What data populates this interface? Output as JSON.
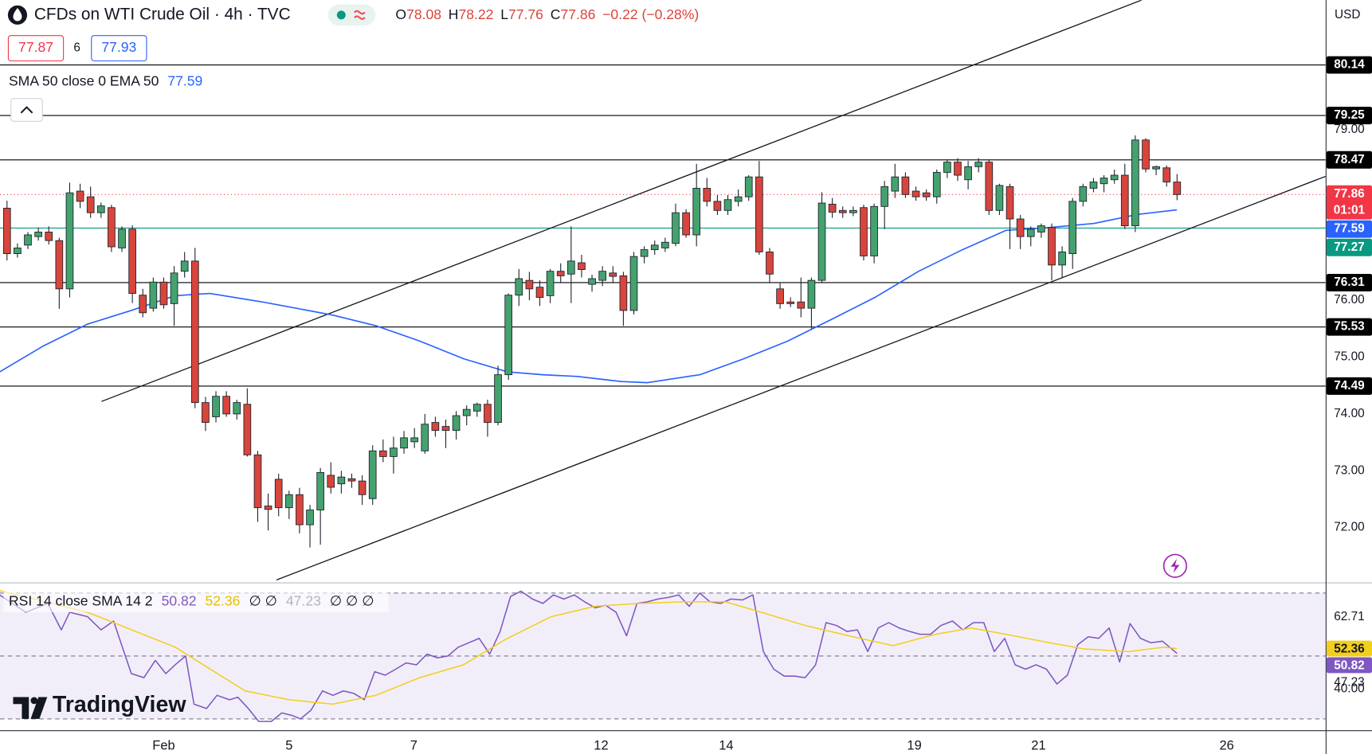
{
  "chart_data": {
    "type": "candlestick",
    "title": "CFDs on WTI Crude Oil · 4h · TVC",
    "legend": [
      [
        "O",
        78.08
      ],
      [
        "H",
        78.22
      ],
      [
        "L",
        77.76
      ],
      [
        "C",
        77.86
      ]
    ],
    "change": "−0.22 (−0.28%)",
    "bid": 77.87,
    "spread": 6,
    "ask": 77.93,
    "currency": "USD",
    "up_color": "#44a26e",
    "down_color": "#d8453c",
    "xlim": [
      -0.67,
      126.22
    ],
    "xticks": [
      {
        "value": 15.0,
        "label": "Feb"
      },
      {
        "value": 27.0,
        "label": "5"
      },
      {
        "value": 38.94,
        "label": "7"
      },
      {
        "value": 56.87,
        "label": "12"
      },
      {
        "value": 68.84,
        "label": "14"
      },
      {
        "value": 86.85,
        "label": "19"
      },
      {
        "value": 98.74,
        "label": "21"
      },
      {
        "value": 116.75,
        "label": "26"
      }
    ],
    "ylim": [
      71.05,
      81.28
    ],
    "yticks": [
      {
        "value": 72,
        "label": "72.00"
      },
      {
        "value": 73,
        "label": "73.00"
      },
      {
        "value": 74,
        "label": "74.00"
      },
      {
        "value": 75,
        "label": "75.00"
      },
      {
        "value": 76,
        "label": "76.00"
      },
      {
        "value": 79,
        "label": "79.00"
      }
    ],
    "ohlc": [
      [
        77.62,
        77.75,
        76.7,
        76.82
      ],
      [
        76.82,
        77.0,
        76.75,
        76.92
      ],
      [
        76.97,
        77.2,
        76.9,
        77.15
      ],
      [
        77.12,
        77.28,
        77.05,
        77.2
      ],
      [
        77.2,
        77.3,
        76.98,
        77.05
      ],
      [
        77.05,
        77.1,
        75.85,
        76.2
      ],
      [
        76.2,
        78.07,
        76.05,
        77.89
      ],
      [
        77.92,
        78.05,
        77.62,
        77.74
      ],
      [
        77.82,
        78.0,
        77.45,
        77.54
      ],
      [
        77.54,
        77.72,
        77.45,
        77.66
      ],
      [
        77.63,
        77.68,
        76.85,
        76.94
      ],
      [
        76.92,
        77.3,
        76.85,
        77.25
      ],
      [
        77.25,
        77.32,
        75.95,
        76.12
      ],
      [
        76.09,
        76.2,
        75.7,
        75.78
      ],
      [
        75.86,
        76.4,
        75.8,
        76.32
      ],
      [
        76.32,
        76.4,
        75.85,
        75.92
      ],
      [
        75.94,
        76.6,
        75.55,
        76.48
      ],
      [
        76.51,
        76.85,
        76.4,
        76.69
      ],
      [
        76.69,
        76.92,
        74.1,
        74.2
      ],
      [
        74.2,
        74.3,
        73.7,
        73.85
      ],
      [
        73.95,
        74.4,
        73.85,
        74.31
      ],
      [
        74.31,
        74.4,
        73.95,
        74.0
      ],
      [
        74.0,
        74.25,
        73.9,
        74.2
      ],
      [
        74.17,
        74.45,
        73.25,
        73.28
      ],
      [
        73.28,
        73.35,
        72.1,
        72.35
      ],
      [
        72.38,
        72.6,
        71.95,
        72.32
      ],
      [
        72.85,
        72.95,
        72.2,
        72.35
      ],
      [
        72.35,
        72.65,
        72.15,
        72.58
      ],
      [
        72.58,
        72.7,
        71.9,
        72.05
      ],
      [
        72.05,
        72.4,
        71.65,
        72.31
      ],
      [
        72.31,
        73.05,
        71.7,
        72.97
      ],
      [
        72.92,
        73.15,
        72.6,
        72.71
      ],
      [
        72.77,
        73.0,
        72.6,
        72.89
      ],
      [
        72.86,
        72.95,
        72.7,
        72.82
      ],
      [
        72.82,
        72.92,
        72.4,
        72.58
      ],
      [
        72.51,
        73.45,
        72.4,
        73.35
      ],
      [
        73.35,
        73.55,
        73.15,
        73.25
      ],
      [
        73.25,
        73.6,
        72.95,
        73.4
      ],
      [
        73.4,
        73.7,
        73.3,
        73.58
      ],
      [
        73.51,
        73.75,
        73.4,
        73.58
      ],
      [
        73.35,
        74.0,
        73.3,
        73.82
      ],
      [
        73.85,
        73.95,
        73.6,
        73.71
      ],
      [
        73.78,
        73.9,
        73.4,
        73.71
      ],
      [
        73.71,
        74.05,
        73.55,
        73.97
      ],
      [
        73.97,
        74.15,
        73.8,
        74.08
      ],
      [
        74.05,
        74.2,
        73.95,
        74.17
      ],
      [
        74.17,
        74.25,
        73.6,
        73.85
      ],
      [
        73.85,
        74.85,
        73.8,
        74.69
      ],
      [
        74.69,
        76.12,
        74.6,
        76.09
      ],
      [
        76.09,
        76.55,
        75.9,
        76.38
      ],
      [
        76.35,
        76.5,
        76.0,
        76.2
      ],
      [
        76.23,
        76.35,
        75.9,
        76.05
      ],
      [
        76.08,
        76.55,
        75.95,
        76.51
      ],
      [
        76.51,
        76.65,
        76.3,
        76.43
      ],
      [
        76.46,
        77.3,
        75.95,
        76.69
      ],
      [
        76.66,
        76.8,
        76.4,
        76.54
      ],
      [
        76.28,
        76.45,
        76.15,
        76.38
      ],
      [
        76.35,
        76.6,
        76.25,
        76.51
      ],
      [
        76.48,
        76.6,
        76.3,
        76.42
      ],
      [
        76.43,
        76.5,
        75.55,
        75.82
      ],
      [
        75.82,
        76.85,
        75.75,
        76.77
      ],
      [
        76.77,
        76.95,
        76.65,
        76.89
      ],
      [
        76.89,
        77.05,
        76.8,
        76.97
      ],
      [
        76.92,
        77.1,
        76.85,
        77.02
      ],
      [
        77.0,
        77.7,
        76.95,
        77.54
      ],
      [
        77.54,
        77.6,
        77.1,
        77.15
      ],
      [
        77.15,
        78.4,
        76.95,
        77.97
      ],
      [
        77.97,
        78.15,
        77.65,
        77.74
      ],
      [
        77.74,
        77.85,
        77.5,
        77.58
      ],
      [
        77.58,
        77.85,
        77.5,
        77.77
      ],
      [
        77.74,
        77.95,
        77.65,
        77.82
      ],
      [
        77.82,
        78.2,
        77.75,
        78.17
      ],
      [
        78.17,
        78.45,
        76.8,
        76.85
      ],
      [
        76.85,
        76.92,
        76.3,
        76.46
      ],
      [
        76.2,
        76.3,
        75.85,
        75.94
      ],
      [
        75.97,
        76.05,
        75.88,
        75.94
      ],
      [
        75.97,
        76.4,
        75.7,
        75.86
      ],
      [
        75.86,
        76.4,
        75.5,
        76.35
      ],
      [
        76.35,
        77.9,
        76.3,
        77.71
      ],
      [
        77.69,
        77.8,
        77.45,
        77.55
      ],
      [
        77.58,
        77.65,
        77.45,
        77.54
      ],
      [
        77.54,
        77.65,
        77.48,
        77.58
      ],
      [
        77.63,
        77.68,
        76.7,
        76.78
      ],
      [
        76.78,
        77.7,
        76.65,
        77.65
      ],
      [
        77.65,
        78.1,
        77.25,
        78.0
      ],
      [
        77.92,
        78.4,
        77.8,
        78.17
      ],
      [
        78.17,
        78.25,
        77.8,
        77.86
      ],
      [
        77.92,
        78.0,
        77.75,
        77.82
      ],
      [
        77.89,
        77.95,
        77.75,
        77.82
      ],
      [
        77.82,
        78.3,
        77.7,
        78.25
      ],
      [
        78.25,
        78.48,
        78.15,
        78.43
      ],
      [
        78.43,
        78.5,
        78.1,
        78.2
      ],
      [
        78.12,
        78.45,
        77.95,
        78.35
      ],
      [
        78.35,
        78.5,
        78.25,
        78.43
      ],
      [
        78.43,
        78.48,
        77.5,
        77.58
      ],
      [
        77.58,
        78.05,
        77.5,
        78.02
      ],
      [
        78.0,
        78.05,
        76.9,
        77.43
      ],
      [
        77.43,
        77.5,
        76.9,
        77.12
      ],
      [
        77.12,
        77.3,
        76.95,
        77.25
      ],
      [
        77.2,
        77.35,
        77.1,
        77.31
      ],
      [
        77.28,
        77.35,
        76.35,
        76.62
      ],
      [
        76.62,
        76.95,
        76.4,
        76.85
      ],
      [
        76.82,
        77.8,
        76.55,
        77.74
      ],
      [
        77.74,
        78.05,
        77.65,
        78.0
      ],
      [
        77.97,
        78.15,
        77.9,
        78.08
      ],
      [
        78.05,
        78.2,
        77.9,
        78.15
      ],
      [
        78.12,
        78.3,
        78.05,
        78.2
      ],
      [
        78.2,
        78.4,
        77.25,
        77.31
      ],
      [
        77.31,
        78.9,
        77.2,
        78.82
      ],
      [
        78.82,
        78.85,
        78.25,
        78.31
      ],
      [
        78.31,
        78.37,
        78.2,
        78.35
      ],
      [
        78.33,
        78.37,
        78.0,
        78.08
      ],
      [
        78.08,
        78.22,
        77.76,
        77.86
      ]
    ],
    "levels": [
      80.14,
      79.25,
      78.47,
      76.31,
      75.53,
      74.49
    ],
    "level_color": "#000000",
    "support": 77.27,
    "support_color": "#089981",
    "last_price": 77.86,
    "last_price_color": "#f23645",
    "countdown": "01:01",
    "overlays": [
      {
        "name": "SMA 50 close 0 EMA 50",
        "color": "#2962ff",
        "x": [
          -0.7,
          3.52,
          7.71,
          11.89,
          16.08,
          19.43,
          24.46,
          31.16,
          35.34,
          39.53,
          43.72,
          47.91,
          51.26,
          54.61,
          58.79,
          61.31,
          66.33,
          70.52,
          74.71,
          78.89,
          83.08,
          87.27,
          91.46,
          95.64,
          99.83,
          104.02,
          108.21,
          111.98
        ],
        "values": [
          74.74,
          75.2,
          75.58,
          75.82,
          76.08,
          76.12,
          75.97,
          75.74,
          75.55,
          75.28,
          74.97,
          74.74,
          74.69,
          74.66,
          74.57,
          74.55,
          74.69,
          74.97,
          75.28,
          75.66,
          76.05,
          76.51,
          76.89,
          77.23,
          77.28,
          77.35,
          77.51,
          77.59
        ]
      }
    ],
    "trendlines": [
      {
        "x": [
          9.05,
          108.6
        ],
        "values": [
          74.22,
          81.28
        ]
      },
      {
        "x": [
          25.8,
          126.22
        ],
        "values": [
          71.08,
          78.18
        ]
      }
    ],
    "rsi": {
      "label": "RSI 14 close SMA 14 2",
      "ylim": [
        26.4,
        72.8
      ],
      "yticks": [
        {
          "value": 40,
          "label": "40.00"
        }
      ],
      "bands": [
        70,
        50,
        30
      ],
      "upper_band": 62.71,
      "lower_band": 47.23,
      "na_1": "∅ ∅",
      "na_2": "∅ ∅ ∅",
      "series": [
        {
          "color": "#7e57c2",
          "x": [
            -0.7,
            1.8,
            3.9,
            5.2,
            6.0,
            7.7,
            9.0,
            10.2,
            11.9,
            13.1,
            14.2,
            15.2,
            16.1,
            17.1,
            17.9,
            19.1,
            20.1,
            21.3,
            22.1,
            23.1,
            24.1,
            25.3,
            26.3,
            27.3,
            28.1,
            29.1,
            30.2,
            31.2,
            32.2,
            33.2,
            34.2,
            35.2,
            36.2,
            37.2,
            38.2,
            39.2,
            40.2,
            41.2,
            42.2,
            43.2,
            44.2,
            45.2,
            46.2,
            47.2,
            48.2,
            49.2,
            50.3,
            51.3,
            52.3,
            53.3,
            54.3,
            55.3,
            56.3,
            57.3,
            58.3,
            59.3,
            60.3,
            61.3,
            62.3,
            63.3,
            64.3,
            65.3,
            66.3,
            67.3,
            68.3,
            69.3,
            70.4,
            71.4,
            72.4,
            73.4,
            74.4,
            75.4,
            76.4,
            77.4,
            78.4,
            79.4,
            80.4,
            81.4,
            82.4,
            83.4,
            84.4,
            85.4,
            86.4,
            87.4,
            88.4,
            89.4,
            90.5,
            91.5,
            92.5,
            93.5,
            94.5,
            95.5,
            96.5,
            97.5,
            98.5,
            99.5,
            100.5,
            101.5,
            102.5,
            103.5,
            104.5,
            105.5,
            106.5,
            107.5,
            108.5,
            109.5,
            110.6,
            112.0
          ],
          "values": [
            69.4,
            63.9,
            66.7,
            58.3,
            63.9,
            62.5,
            58.3,
            61.1,
            44.4,
            43.1,
            48.6,
            44.4,
            47.2,
            50.0,
            34.7,
            33.3,
            37.5,
            36.1,
            36.9,
            33.3,
            29.2,
            29.2,
            31.9,
            31.1,
            30.0,
            32.8,
            38.9,
            37.5,
            38.9,
            38.1,
            36.1,
            45.0,
            43.9,
            45.8,
            47.8,
            47.2,
            50.6,
            49.4,
            50.0,
            52.8,
            54.2,
            55.6,
            50.6,
            57.8,
            68.9,
            70.6,
            68.1,
            66.7,
            69.4,
            68.1,
            69.4,
            67.2,
            65.3,
            66.1,
            63.9,
            56.4,
            66.7,
            67.2,
            68.1,
            68.6,
            69.4,
            65.8,
            70.0,
            67.2,
            66.7,
            68.1,
            67.8,
            69.4,
            51.4,
            45.8,
            43.6,
            43.6,
            43.1,
            47.2,
            60.6,
            59.7,
            57.8,
            58.3,
            51.4,
            58.9,
            60.6,
            58.9,
            57.8,
            56.9,
            56.9,
            59.7,
            61.1,
            58.3,
            60.6,
            60.6,
            51.4,
            55.6,
            47.2,
            45.8,
            47.2,
            45.8,
            41.1,
            43.9,
            53.6,
            56.1,
            55.6,
            58.9,
            48.1,
            60.3,
            55.6,
            54.2,
            54.7,
            50.82
          ]
        },
        {
          "color": "#f2cf1d",
          "x": [
            -0.7,
            7.7,
            16.1,
            22.8,
            27.0,
            31.2,
            35.3,
            39.5,
            43.7,
            47.9,
            52.1,
            56.3,
            60.5,
            64.7,
            68.8,
            72.2,
            76.4,
            80.6,
            84.8,
            88.9,
            92.3,
            95.6,
            99.8,
            103.2,
            107.4,
            110.7,
            112.0
          ],
          "values": [
            70.8,
            63.9,
            52.8,
            38.9,
            36.1,
            34.7,
            37.5,
            43.1,
            47.2,
            55.6,
            62.5,
            65.8,
            66.7,
            67.2,
            67.2,
            63.9,
            59.7,
            56.4,
            53.3,
            56.9,
            58.9,
            56.9,
            54.2,
            52.2,
            51.4,
            52.8,
            52.36
          ]
        }
      ]
    },
    "logo": "TradingView"
  }
}
